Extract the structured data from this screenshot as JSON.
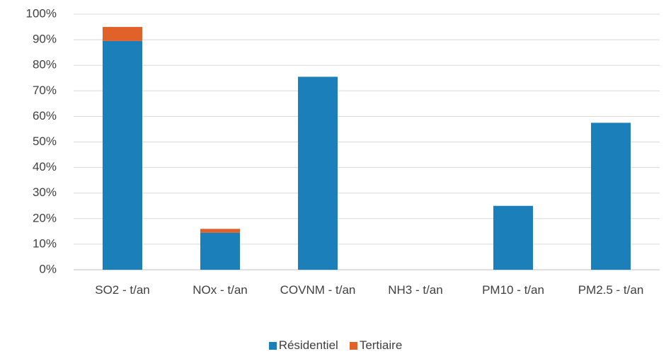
{
  "chart_data": {
    "type": "stacked_bar",
    "categories": [
      "SO2 - t/an",
      "NOx - t/an",
      "COVNM - t/an",
      "NH3 - t/an",
      "PM10 - t/an",
      "PM2.5 - t/an"
    ],
    "series": [
      {
        "name": "Résidentiel",
        "color": "#1b80b9",
        "values": [
          89.5,
          14.5,
          75.5,
          0,
          25,
          57.5
        ]
      },
      {
        "name": "Tertiaire",
        "color": "#e0622a",
        "values": [
          5.5,
          1.5,
          0,
          0,
          0,
          0
        ]
      }
    ],
    "ylim": [
      0,
      100
    ],
    "yticks": [
      {
        "value": 0,
        "label": "0%"
      },
      {
        "value": 10,
        "label": "10%"
      },
      {
        "value": 20,
        "label": "20%"
      },
      {
        "value": 30,
        "label": "30%"
      },
      {
        "value": 40,
        "label": "40%"
      },
      {
        "value": 50,
        "label": "50%"
      },
      {
        "value": 60,
        "label": "60%"
      },
      {
        "value": 70,
        "label": "70%"
      },
      {
        "value": 80,
        "label": "80%"
      },
      {
        "value": 90,
        "label": "90%"
      },
      {
        "value": 100,
        "label": "100%"
      }
    ],
    "grid": true,
    "legend": "bottom"
  }
}
